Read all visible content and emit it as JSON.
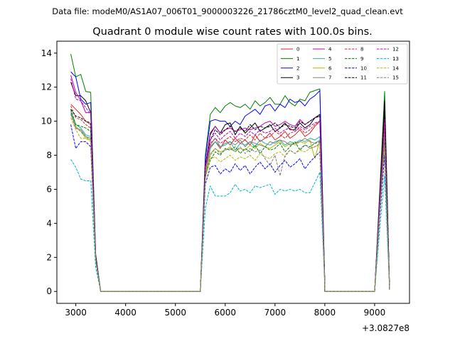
{
  "chart_data": {
    "type": "line",
    "suptitle": "Data file: modeM0/AS1A07_006T01_9000003226_21786cztM0_level2_quad_clean.evt",
    "title": "Quadrant 0 module wise count rates with 100.0s bins.",
    "xlabel": "",
    "ylabel": "",
    "x_offset_label": "+3.0827e8",
    "x_ticks": [
      3000,
      4000,
      5000,
      6000,
      7000,
      8000,
      9000
    ],
    "y_ticks": [
      0,
      2,
      4,
      6,
      8,
      10,
      12,
      14
    ],
    "xlim": [
      2620,
      9700
    ],
    "ylim": [
      -0.7,
      14.7
    ],
    "legend_position": "upper-right",
    "x": {
      "seg1": [
        2900,
        3000,
        3100,
        3200,
        3300,
        3400,
        3500
      ],
      "gap1": [
        3500,
        5500
      ],
      "seg2": [
        5500,
        5600,
        5700,
        5800,
        5900,
        6000,
        6100,
        6200,
        6300,
        6400,
        6500,
        6600,
        6700,
        6800,
        6900,
        7000,
        7100,
        7200,
        7300,
        7400,
        7500,
        7600,
        7700,
        7800,
        7900,
        8000
      ],
      "gap2": [
        8000,
        8100,
        9000
      ],
      "seg3": [
        9000,
        9100,
        9200,
        9300
      ]
    },
    "series": [
      {
        "name": "0",
        "color": "#d62728",
        "dash": false,
        "seg1": [
          11.0,
          10.7,
          10.4,
          10.0,
          9.8,
          2.0,
          0
        ],
        "seg2": [
          0,
          7.3,
          8.5,
          8.8,
          8.4,
          8.9,
          8.6,
          9.0,
          8.7,
          8.9,
          8.6,
          9.2,
          8.8,
          9.0,
          9.3,
          8.9,
          9.1,
          9.4,
          9.0,
          9.2,
          9.5,
          9.1,
          9.3,
          9.7,
          10.0,
          0.4
        ],
        "seg3": [
          0,
          5.0,
          9.5,
          0.1
        ]
      },
      {
        "name": "1",
        "color": "#008000",
        "dash": false,
        "seg1": [
          13.95,
          12.6,
          12.75,
          11.75,
          11.7,
          2.2,
          0
        ],
        "seg2": [
          0,
          8.0,
          10.4,
          10.8,
          10.5,
          10.9,
          11.1,
          10.9,
          10.8,
          11.0,
          10.7,
          11.2,
          10.9,
          11.1,
          11.4,
          11.0,
          11.0,
          11.5,
          11.1,
          10.9,
          11.3,
          11.2,
          11.7,
          11.8,
          11.9,
          0.5
        ],
        "seg3": [
          0,
          5.8,
          11.75,
          0.1
        ]
      },
      {
        "name": "2",
        "color": "#0000ff",
        "dash": false,
        "seg1": [
          12.9,
          12.6,
          11.3,
          11.0,
          11.1,
          2.1,
          0
        ],
        "seg2": [
          0,
          7.8,
          10.0,
          10.1,
          10.0,
          10.0,
          9.7,
          10.0,
          9.8,
          10.3,
          10.5,
          10.7,
          10.4,
          10.9,
          11.0,
          10.6,
          11.0,
          10.8,
          11.3,
          11.1,
          11.2,
          10.9,
          11.3,
          11.5,
          11.8,
          0.5
        ],
        "seg3": [
          0,
          5.6,
          10.8,
          0.1
        ]
      },
      {
        "name": "3",
        "color": "#000000",
        "dash": false,
        "seg1": [
          12.3,
          11.5,
          11.5,
          11.2,
          10.5,
          2.1,
          0
        ],
        "seg2": [
          0,
          7.4,
          9.3,
          9.7,
          9.3,
          9.8,
          9.9,
          9.2,
          9.7,
          9.3,
          9.6,
          9.9,
          9.4,
          9.6,
          9.8,
          9.4,
          9.6,
          9.9,
          9.5,
          9.5,
          9.9,
          9.6,
          9.8,
          10.2,
          10.4,
          0.4
        ],
        "seg3": [
          0,
          5.4,
          11.2,
          0.1
        ]
      },
      {
        "name": "4",
        "color": "#c000c0",
        "dash": false,
        "seg1": [
          12.7,
          11.7,
          11.2,
          10.5,
          10.5,
          2.0,
          0
        ],
        "seg2": [
          0,
          7.4,
          9.2,
          9.7,
          9.3,
          9.5,
          9.6,
          9.4,
          9.5,
          9.6,
          9.5,
          9.6,
          9.7,
          9.9,
          10.0,
          9.7,
          9.8,
          10.0,
          9.8,
          9.7,
          10.1,
          9.8,
          10.0,
          10.2,
          10.3,
          0.4
        ],
        "seg3": [
          0,
          5.2,
          10.2,
          0.1
        ]
      },
      {
        "name": "5",
        "color": "#20b2aa",
        "dash": false,
        "seg1": [
          10.6,
          9.8,
          9.6,
          9.2,
          9.1,
          1.9,
          0
        ],
        "seg2": [
          0,
          6.9,
          8.4,
          8.8,
          8.5,
          8.6,
          8.8,
          8.3,
          8.7,
          8.6,
          8.8,
          8.5,
          8.9,
          8.7,
          8.6,
          8.8,
          8.9,
          8.6,
          8.8,
          8.7,
          8.9,
          8.8,
          9.0,
          8.9,
          9.1,
          0.4
        ],
        "seg3": [
          0,
          4.8,
          9.1,
          0.1
        ]
      },
      {
        "name": "6",
        "color": "#b8b800",
        "dash": false,
        "seg1": [
          10.4,
          9.7,
          9.4,
          9.0,
          8.9,
          1.9,
          0
        ],
        "seg2": [
          0,
          6.8,
          8.1,
          8.4,
          8.2,
          8.3,
          8.5,
          8.2,
          8.4,
          8.3,
          8.6,
          8.4,
          8.7,
          8.5,
          8.4,
          8.6,
          8.8,
          8.5,
          8.7,
          8.6,
          8.8,
          8.7,
          8.9,
          7.8,
          8.9,
          0.4
        ],
        "seg3": [
          0,
          4.7,
          8.8,
          0.1
        ]
      },
      {
        "name": "7",
        "color": "#808080",
        "dash": false,
        "seg1": [
          10.5,
          9.6,
          9.5,
          9.1,
          9.0,
          1.9,
          0
        ],
        "seg2": [
          0,
          6.9,
          8.6,
          9.0,
          8.5,
          8.7,
          8.8,
          8.6,
          8.9,
          8.5,
          8.8,
          8.7,
          8.6,
          8.5,
          8.8,
          8.7,
          8.9,
          8.8,
          8.6,
          8.7,
          8.8,
          9.0,
          8.8,
          8.7,
          8.9,
          0.4
        ],
        "seg3": [
          0,
          4.9,
          9.3,
          0.1
        ]
      },
      {
        "name": "8",
        "color": "#d62728",
        "dash": true,
        "seg1": [
          10.9,
          10.2,
          10.1,
          9.8,
          9.6,
          2.0,
          0
        ],
        "seg2": [
          0,
          7.2,
          8.7,
          9.0,
          8.7,
          8.9,
          9.1,
          8.8,
          9.0,
          8.9,
          9.2,
          8.9,
          9.3,
          9.0,
          9.1,
          9.4,
          9.2,
          9.0,
          9.3,
          9.4,
          9.6,
          9.3,
          9.5,
          9.8,
          10.0,
          0.4
        ],
        "seg3": [
          0,
          5.0,
          9.9,
          0.1
        ]
      },
      {
        "name": "9",
        "color": "#008000",
        "dash": true,
        "seg1": [
          10.7,
          9.8,
          9.7,
          9.6,
          9.4,
          1.9,
          0
        ],
        "seg2": [
          0,
          6.8,
          7.7,
          8.2,
          8.0,
          8.4,
          8.3,
          8.5,
          8.1,
          8.4,
          8.2,
          8.6,
          8.1,
          8.5,
          8.3,
          8.4,
          8.7,
          8.2,
          8.5,
          8.8,
          8.3,
          8.6,
          8.5,
          8.7,
          8.8,
          0.4
        ],
        "seg3": [
          0,
          4.7,
          8.7,
          0.1
        ]
      },
      {
        "name": "10",
        "color": "#0000ff",
        "dash": true,
        "seg1": [
          9.8,
          8.4,
          8.8,
          8.8,
          8.5,
          1.8,
          0
        ],
        "seg2": [
          0,
          6.3,
          7.3,
          7.4,
          6.9,
          7.2,
          7.0,
          7.5,
          7.1,
          7.4,
          6.9,
          7.3,
          7.6,
          7.2,
          7.5,
          7.0,
          7.4,
          7.7,
          7.3,
          7.5,
          7.8,
          7.2,
          7.6,
          7.9,
          8.2,
          0.3
        ],
        "seg3": [
          0,
          4.3,
          8.0,
          0.1
        ]
      },
      {
        "name": "11",
        "color": "#000000",
        "dash": true,
        "seg1": [
          10.7,
          10.3,
          10.2,
          10.0,
          9.9,
          2.0,
          0
        ],
        "seg2": [
          0,
          7.4,
          8.9,
          9.5,
          9.2,
          9.5,
          9.7,
          9.4,
          9.6,
          9.4,
          9.8,
          9.5,
          9.7,
          9.6,
          9.7,
          9.9,
          9.6,
          9.8,
          9.7,
          9.6,
          10.0,
          9.8,
          10.0,
          10.2,
          10.3,
          0.4
        ],
        "seg3": [
          0,
          5.2,
          10.8,
          0.1
        ]
      },
      {
        "name": "12",
        "color": "#c000c0",
        "dash": true,
        "seg1": [
          12.5,
          11.3,
          11.2,
          10.8,
          10.4,
          2.0,
          0
        ],
        "seg2": [
          0,
          7.3,
          8.9,
          9.3,
          8.9,
          9.2,
          9.4,
          9.0,
          9.3,
          9.1,
          9.4,
          9.2,
          9.5,
          9.3,
          9.4,
          9.6,
          9.3,
          9.5,
          9.6,
          9.4,
          9.7,
          9.5,
          9.7,
          9.9,
          10.0,
          0.4
        ],
        "seg3": [
          0,
          5.1,
          10.0,
          0.1
        ]
      },
      {
        "name": "13",
        "color": "#00b8c8",
        "dash": true,
        "seg1": [
          7.75,
          7.3,
          6.6,
          6.5,
          6.5,
          1.4,
          0
        ],
        "seg2": [
          0,
          4.9,
          6.2,
          5.6,
          5.6,
          5.6,
          5.8,
          6.3,
          5.9,
          6.0,
          5.8,
          6.2,
          6.1,
          6.2,
          6.3,
          5.7,
          6.0,
          5.9,
          6.0,
          5.9,
          6.0,
          5.8,
          5.8,
          6.4,
          7.0,
          0.3
        ],
        "seg3": [
          0,
          3.6,
          6.8,
          0.1
        ]
      },
      {
        "name": "14",
        "color": "#b8b800",
        "dash": true,
        "seg1": [
          10.2,
          9.5,
          9.0,
          9.0,
          8.8,
          1.8,
          0
        ],
        "seg2": [
          0,
          6.6,
          7.8,
          7.9,
          7.6,
          7.8,
          8.0,
          7.7,
          7.9,
          7.8,
          8.0,
          7.7,
          8.1,
          7.9,
          7.8,
          8.1,
          8.2,
          7.9,
          8.3,
          8.1,
          8.3,
          8.2,
          8.4,
          8.5,
          8.6,
          0.4
        ],
        "seg3": [
          0,
          4.6,
          8.6,
          0.1
        ]
      },
      {
        "name": "15",
        "color": "#808080",
        "dash": true,
        "seg1": [
          10.4,
          9.6,
          9.4,
          9.1,
          8.9,
          1.9,
          0
        ],
        "seg2": [
          0,
          6.7,
          8.0,
          8.4,
          8.1,
          8.3,
          8.4,
          8.2,
          8.5,
          8.1,
          8.4,
          8.2,
          8.3,
          7.8,
          7.4,
          8.0,
          6.8,
          8.0,
          8.3,
          8.1,
          8.4,
          8.6,
          8.4,
          8.5,
          8.7,
          0.4
        ],
        "seg3": [
          0,
          4.7,
          8.6,
          0.1
        ]
      }
    ]
  }
}
